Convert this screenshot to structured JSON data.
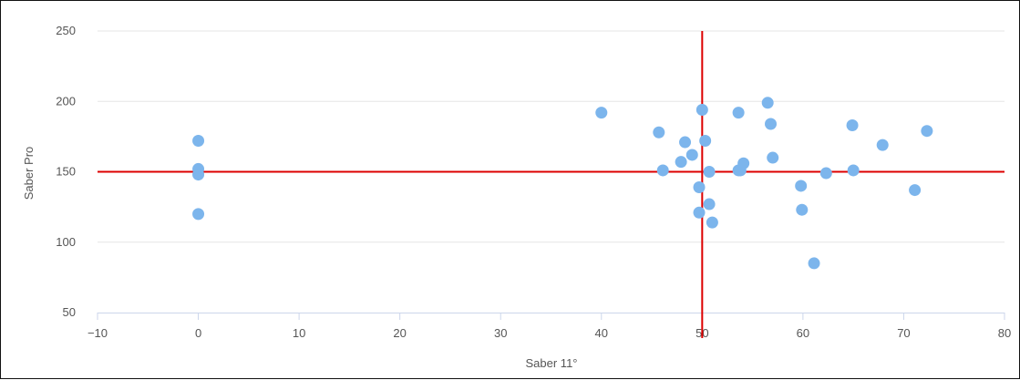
{
  "chart_data": {
    "type": "scatter",
    "xlabel": "Saber 11°",
    "ylabel": "Saber Pro",
    "xlim": [
      -10,
      80
    ],
    "ylim": [
      50,
      250
    ],
    "x_ticks": [
      "−10",
      "0",
      "10",
      "20",
      "30",
      "40",
      "50",
      "60",
      "70",
      "80"
    ],
    "y_ticks": [
      "50",
      "100",
      "150",
      "200",
      "250"
    ],
    "grid": true,
    "legend": "none",
    "point_color": "#7cb5ec",
    "reference_lines": {
      "x": 50,
      "y": 150,
      "color": "#dd0000"
    },
    "points": [
      [
        0,
        172
      ],
      [
        0,
        152
      ],
      [
        0,
        148
      ],
      [
        0,
        120
      ],
      [
        40,
        192
      ],
      [
        45.7,
        178
      ],
      [
        46.1,
        151
      ],
      [
        47.9,
        157
      ],
      [
        48.3,
        171
      ],
      [
        49,
        162
      ],
      [
        49.7,
        139
      ],
      [
        49.7,
        121
      ],
      [
        50,
        194
      ],
      [
        50.3,
        172
      ],
      [
        50.7,
        150
      ],
      [
        50.7,
        127
      ],
      [
        51,
        114
      ],
      [
        53.6,
        192
      ],
      [
        53.6,
        151
      ],
      [
        53.8,
        151
      ],
      [
        54.1,
        156
      ],
      [
        56.5,
        199
      ],
      [
        56.8,
        184
      ],
      [
        57,
        160
      ],
      [
        59.8,
        140
      ],
      [
        59.9,
        123
      ],
      [
        61.1,
        85
      ],
      [
        62.3,
        149
      ],
      [
        64.9,
        183
      ],
      [
        65,
        151
      ],
      [
        67.9,
        169
      ],
      [
        71.1,
        137
      ],
      [
        72.3,
        179
      ]
    ]
  }
}
